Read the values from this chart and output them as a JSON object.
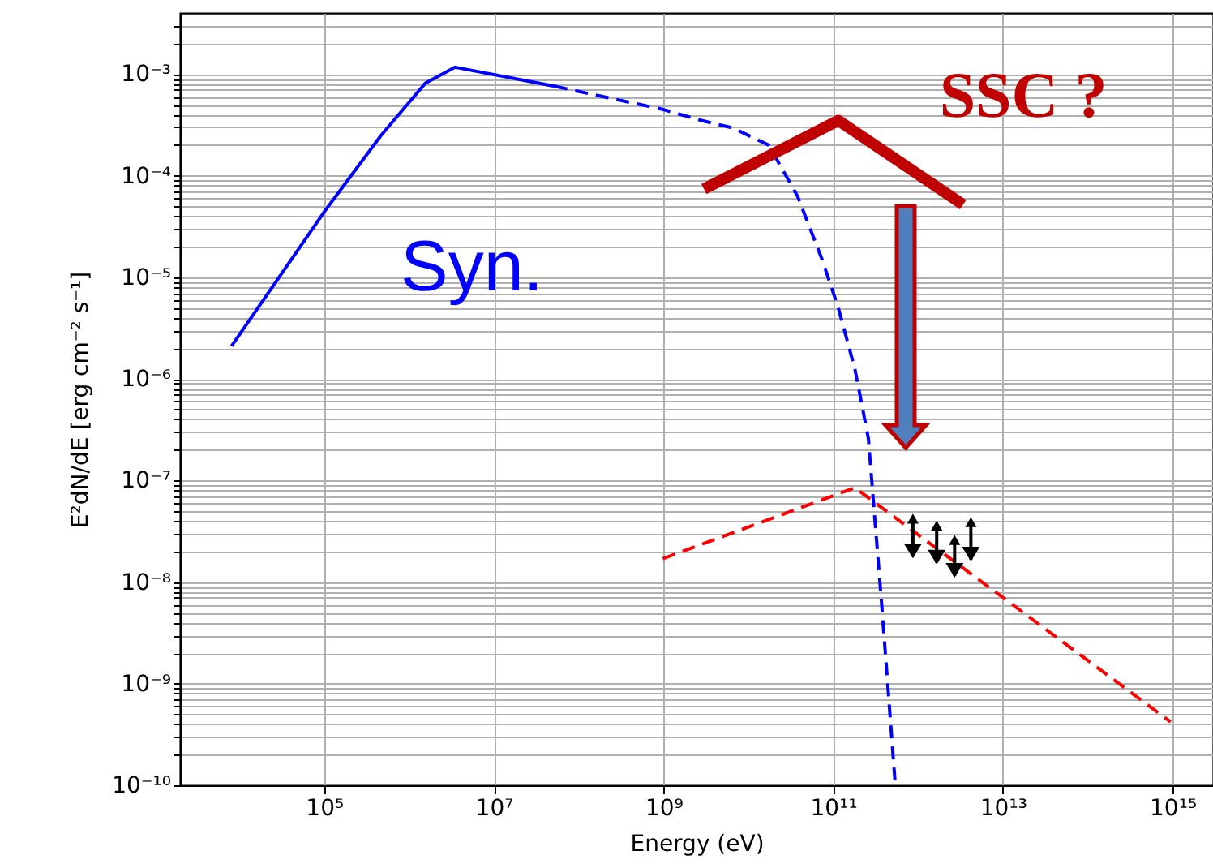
{
  "chart_data": {
    "type": "line",
    "xlabel": "Energy (eV)",
    "ylabel": "E²dN/dE [erg cm⁻² s⁻¹]",
    "log": "xy",
    "grid": true,
    "xlim": [
      2000,
      3000000000000000.0
    ],
    "ylim": [
      1e-10,
      0.004
    ],
    "xticks": [
      {
        "value": 100000,
        "label": "10⁵"
      },
      {
        "value": 10000000,
        "label": "10⁷"
      },
      {
        "value": 1000000000,
        "label": "10⁹"
      },
      {
        "value": 100000000000,
        "label": "10¹¹"
      },
      {
        "value": 10000000000000,
        "label": "10¹³"
      },
      {
        "value": 1000000000000000,
        "label": "10¹⁵"
      }
    ],
    "yticks": [
      {
        "value": 1e-10,
        "label": "10⁻¹⁰"
      },
      {
        "value": 2e-10,
        "label": null
      },
      {
        "value": 3e-10,
        "label": null
      },
      {
        "value": 4e-10,
        "label": null
      },
      {
        "value": 5e-10,
        "label": null
      },
      {
        "value": 6e-10,
        "label": null
      },
      {
        "value": 7e-10,
        "label": null
      },
      {
        "value": 8e-10,
        "label": null
      },
      {
        "value": 9e-10,
        "label": null
      },
      {
        "value": 1e-09,
        "label": "10⁻⁹"
      },
      {
        "value": 2e-09,
        "label": null
      },
      {
        "value": 3e-09,
        "label": null
      },
      {
        "value": 4e-09,
        "label": null
      },
      {
        "value": 5e-09,
        "label": null
      },
      {
        "value": 6e-09,
        "label": null
      },
      {
        "value": 7e-09,
        "label": null
      },
      {
        "value": 8e-09,
        "label": null
      },
      {
        "value": 9e-09,
        "label": null
      },
      {
        "value": 1e-08,
        "label": "10⁻⁸"
      },
      {
        "value": 2e-08,
        "label": null
      },
      {
        "value": 3e-08,
        "label": null
      },
      {
        "value": 4e-08,
        "label": null
      },
      {
        "value": 5e-08,
        "label": null
      },
      {
        "value": 6e-08,
        "label": null
      },
      {
        "value": 7e-08,
        "label": null
      },
      {
        "value": 8e-08,
        "label": null
      },
      {
        "value": 9e-08,
        "label": null
      },
      {
        "value": 1e-07,
        "label": "10⁻⁷"
      },
      {
        "value": 2e-07,
        "label": null
      },
      {
        "value": 3e-07,
        "label": null
      },
      {
        "value": 4e-07,
        "label": null
      },
      {
        "value": 5e-07,
        "label": null
      },
      {
        "value": 6e-07,
        "label": null
      },
      {
        "value": 7e-07,
        "label": null
      },
      {
        "value": 8e-07,
        "label": null
      },
      {
        "value": 9e-07,
        "label": null
      },
      {
        "value": 1e-06,
        "label": "10⁻⁶"
      },
      {
        "value": 2e-06,
        "label": null
      },
      {
        "value": 3e-06,
        "label": null
      },
      {
        "value": 4e-06,
        "label": null
      },
      {
        "value": 5e-06,
        "label": null
      },
      {
        "value": 6e-06,
        "label": null
      },
      {
        "value": 7e-06,
        "label": null
      },
      {
        "value": 8e-06,
        "label": null
      },
      {
        "value": 9e-06,
        "label": null
      },
      {
        "value": 1e-05,
        "label": "10⁻⁵"
      },
      {
        "value": 2e-05,
        "label": null
      },
      {
        "value": 3e-05,
        "label": null
      },
      {
        "value": 4e-05,
        "label": null
      },
      {
        "value": 5e-05,
        "label": null
      },
      {
        "value": 6e-05,
        "label": null
      },
      {
        "value": 7e-05,
        "label": null
      },
      {
        "value": 8e-05,
        "label": null
      },
      {
        "value": 9e-05,
        "label": null
      },
      {
        "value": 0.0001,
        "label": "10⁻⁴"
      },
      {
        "value": 0.0002,
        "label": null
      },
      {
        "value": 0.0003,
        "label": null
      },
      {
        "value": 0.0004,
        "label": null
      },
      {
        "value": 0.0005,
        "label": null
      },
      {
        "value": 0.0006,
        "label": null
      },
      {
        "value": 0.0007,
        "label": null
      },
      {
        "value": 0.0008,
        "label": null
      },
      {
        "value": 0.0009,
        "label": null
      },
      {
        "value": 0.001,
        "label": "10⁻³"
      },
      {
        "value": 0.002,
        "label": null
      },
      {
        "value": 0.003,
        "label": null
      }
    ],
    "series": [
      {
        "color": "#0000ff",
        "line_style": "solid",
        "x": [
          8100,
          100000,
          470000,
          1550000,
          3500000,
          52000000
        ],
        "values": [
          2.1e-06,
          4.4e-05,
          0.00025,
          0.00081,
          0.00117,
          0.00076
        ]
      },
      {
        "color": "#0000ff",
        "line_style": "dashed",
        "x": [
          52000000,
          980000000,
          2800000000,
          6600000000,
          17400000000,
          38000000000,
          74000000000,
          115000000000,
          180000000000,
          260000000000,
          370000000000,
          540000000000
        ],
        "values": [
          0.00076,
          0.00045,
          0.00035,
          0.000295,
          0.0002,
          6.3e-05,
          1.5e-05,
          5e-06,
          1.26e-06,
          2.6e-07,
          6.6e-09,
          1e-10
        ]
      },
      {
        "color": "#ff0000",
        "line_style": "dashed",
        "x": [
          980000000,
          180000000000,
          950000000000000
        ],
        "values": [
          1.7e-08,
          8.5e-08,
          4.2e-10
        ]
      },
      {
        "color": "#c00000",
        "line_style": "solid",
        "x": [
          3000000000,
          115000000000,
          3400000000000
        ],
        "values": [
          7.4e-05,
          0.00035,
          5.2e-05
        ]
      },
      {
        "type": "scatter",
        "color": "#000000",
        "marker": "triangle",
        "x": [
          870000000000,
          1660000000000,
          2700000000000,
          4200000000000
        ],
        "values": [
          4.2e-08,
          3.6e-08,
          2.6e-08,
          3.9e-08
        ],
        "errors": [
          [
            1.78e-08,
            4.2e-08
          ],
          [
            1.55e-08,
            3.6e-08
          ],
          [
            1.15e-08,
            2.6e-08
          ],
          [
            1.66e-08,
            3.9e-08
          ]
        ]
      }
    ],
    "annotations": [
      "Syn.",
      "SSC ?"
    ]
  }
}
